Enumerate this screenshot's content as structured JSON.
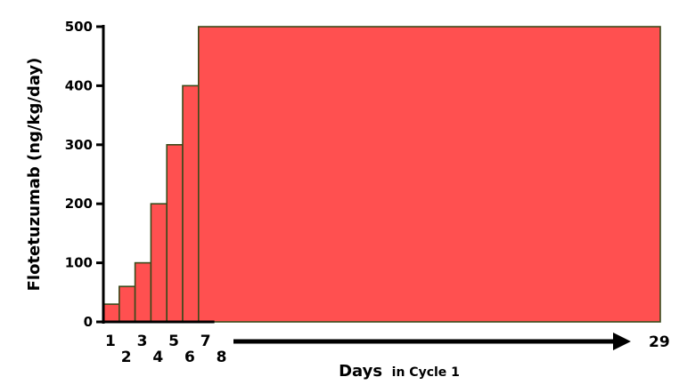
{
  "chart_data": {
    "type": "bar",
    "ylabel": "Flotetuzumab (ng/kg/day)",
    "xlabel_main": "Days",
    "xlabel_sub": "in Cycle 1",
    "ylim": [
      0,
      500
    ],
    "yticks": [
      0,
      100,
      200,
      300,
      400,
      500
    ],
    "day_labels": [
      "1",
      "2",
      "3",
      "4",
      "5",
      "6",
      "7",
      "8"
    ],
    "arrow_end_label": "29",
    "series": [
      {
        "days": [
          1,
          2,
          3,
          4,
          5,
          6,
          7
        ],
        "values": [
          30,
          60,
          100,
          200,
          300,
          400,
          500
        ]
      }
    ],
    "colors": {
      "bar_fill": "#ff5050",
      "bar_stroke": "#3a4a1a",
      "axis": "#000000"
    }
  }
}
